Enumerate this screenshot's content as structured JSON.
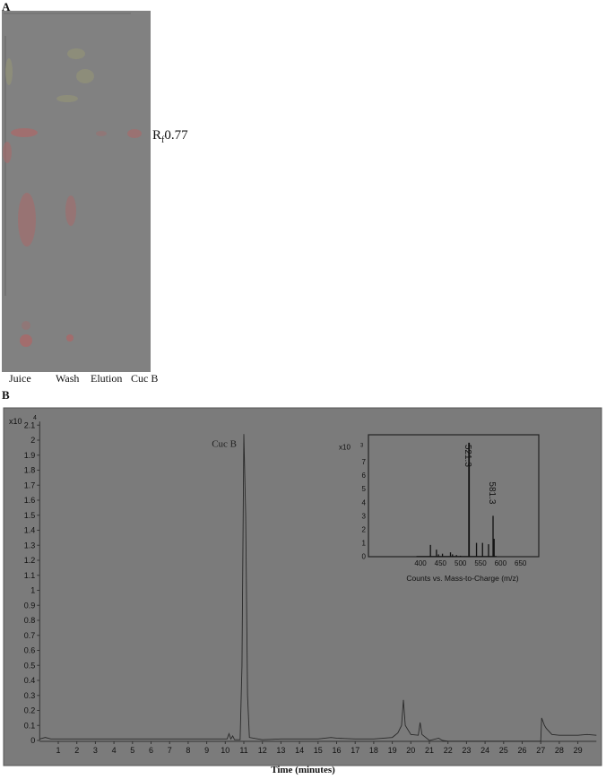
{
  "panel_a": {
    "label": "A",
    "lanes": [
      "Juice",
      "Wash",
      "Elution",
      "Cuc B"
    ],
    "rf_label": "R",
    "rf_sub": "f",
    "rf_value": "0.77",
    "plate_color": "#818181",
    "spot_color": "#a86a6a"
  },
  "panel_b": {
    "label": "B"
  },
  "chart_data": [
    {
      "type": "line",
      "xlabel": "Time (minutes)",
      "ylabel": "",
      "y_multiplier": "x10",
      "y_exponent": "4",
      "xlim": [
        0,
        30
      ],
      "ylim": [
        0,
        2.1
      ],
      "x_ticks": [
        1,
        2,
        3,
        4,
        5,
        6,
        7,
        8,
        9,
        10,
        11,
        12,
        13,
        14,
        15,
        16,
        17,
        18,
        19,
        20,
        21,
        22,
        23,
        24,
        25,
        26,
        27,
        28,
        29
      ],
      "y_ticks": [
        "0",
        "0.1",
        "0.2",
        "0.3",
        "0.4",
        "0.5",
        "0.6",
        "0.7",
        "0.8",
        "0.9",
        "1",
        "1.1",
        "1.2",
        "1.3",
        "1.4",
        "1.5",
        "1.6",
        "1.7",
        "1.8",
        "1.9",
        "2",
        "2.1"
      ],
      "grid": false,
      "background": "#7b7b7b",
      "annotation": {
        "text": "Cuc B",
        "x": 11.0,
        "y": 2.04
      },
      "series": [
        {
          "x": [
            0,
            0.3,
            0.6,
            1,
            2,
            3,
            4,
            5,
            6,
            7,
            8,
            9,
            10,
            10.1,
            10.2,
            10.3,
            10.4,
            10.5,
            10.8,
            10.9,
            11.0,
            11.1,
            11.2,
            11.3,
            12,
            13,
            14,
            15,
            15.7,
            16,
            17,
            18,
            19,
            19.3,
            19.5,
            19.6,
            19.7,
            20,
            20.4,
            20.5,
            20.6,
            21,
            21.5,
            21.7,
            22,
            23,
            24,
            25,
            26,
            27,
            27.05,
            27.2,
            27.3,
            27.6,
            28,
            29,
            29.5,
            30
          ],
          "y": [
            0.01,
            0.02,
            0.01,
            0.01,
            0.01,
            0.01,
            0.01,
            0.01,
            0.01,
            0.01,
            0.01,
            0.01,
            0.01,
            0.01,
            0.045,
            0.01,
            0.03,
            0.005,
            0.005,
            0.5,
            2.04,
            1.5,
            0.3,
            0.02,
            0.005,
            0.01,
            0.01,
            0.01,
            0.02,
            0.015,
            0.01,
            0.01,
            0.02,
            0.05,
            0.1,
            0.27,
            0.1,
            0.04,
            0.035,
            0.12,
            0.04,
            0.0,
            0.015,
            0.0,
            -0.005,
            -0.005,
            -0.005,
            -0.005,
            -0.005,
            -0.005,
            0.15,
            0.1,
            0.08,
            0.04,
            0.035,
            0.035,
            0.04,
            0.035
          ]
        }
      ]
    },
    {
      "type": "bar",
      "title": "",
      "xlabel": "Counts vs. Mass-to-Charge (m/z)",
      "y_multiplier": "x10",
      "y_exponent": "3",
      "xlim": [
        350,
        690
      ],
      "ylim": [
        0,
        8.6
      ],
      "x_ticks": [
        400,
        450,
        500,
        550,
        600,
        650
      ],
      "y_ticks": [
        0,
        1,
        2,
        3,
        4,
        5,
        6,
        7
      ],
      "x": [
        425,
        440,
        445,
        455,
        475,
        480,
        490,
        500,
        521.3,
        540,
        555,
        570,
        581.3,
        584
      ],
      "values": [
        0.85,
        0.5,
        0.15,
        0.2,
        0.3,
        0.15,
        0.1,
        0.05,
        8.4,
        1.0,
        1.0,
        0.9,
        3.0,
        1.3
      ],
      "labels": [
        {
          "text": "521.3",
          "x": 521.3
        },
        {
          "text": "581.3",
          "x": 581.3
        }
      ]
    }
  ]
}
